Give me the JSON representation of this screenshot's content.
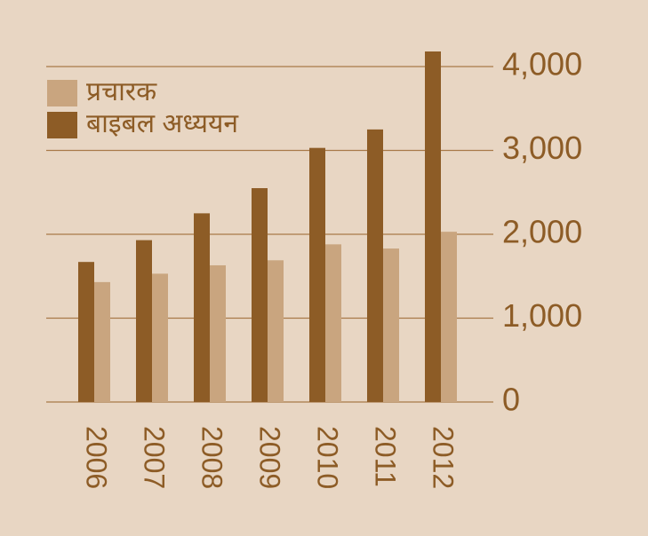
{
  "chart_data": {
    "type": "bar",
    "categories": [
      "2006",
      "2007",
      "2008",
      "2009",
      "2010",
      "2011",
      "2012"
    ],
    "series": [
      {
        "name": "प्रचारक",
        "color": "#c9a57f",
        "values": [
          1430,
          1530,
          1630,
          1690,
          1880,
          1830,
          2030
        ]
      },
      {
        "name": "बाइबल अध्ययन",
        "color": "#8d5c26",
        "values": [
          1670,
          1930,
          2250,
          2550,
          3030,
          3250,
          4180
        ]
      }
    ],
    "ylim": [
      0,
      4000
    ],
    "yticks": [
      0,
      {
        "value": 1000,
        "label": "1,000"
      },
      {
        "value": 2000,
        "label": "2,000"
      },
      {
        "value": 3000,
        "label": "3,000"
      },
      {
        "value": 4000,
        "label": "4,000"
      }
    ],
    "grid": true,
    "legend": "top-left"
  }
}
